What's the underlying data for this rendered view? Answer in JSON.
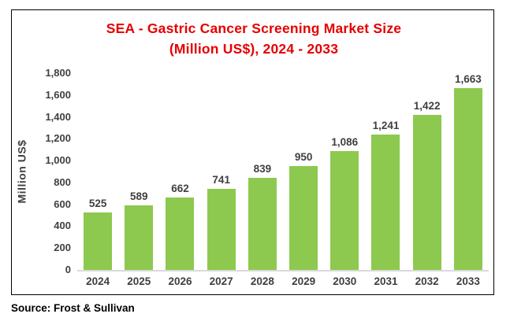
{
  "title_line1": "SEA - Gastric Cancer Screening Market Size",
  "title_line2": "(Million US$), 2024 - 2033",
  "source": "Source: Frost & Sullivan",
  "colors": {
    "title": "#e60000",
    "bar": "#8dc94e",
    "text": "#3f3f3f",
    "axis_line": "#d9d9d9",
    "frame_border": "#000000"
  },
  "chart_data": {
    "type": "bar",
    "title": "SEA - Gastric Cancer Screening Market Size (Million US$), 2024 - 2033",
    "categories": [
      "2024",
      "2025",
      "2026",
      "2027",
      "2028",
      "2029",
      "2030",
      "2031",
      "2032",
      "2033"
    ],
    "values": [
      525,
      589,
      662,
      741,
      839,
      950,
      1086,
      1241,
      1422,
      1663
    ],
    "value_labels": [
      "525",
      "589",
      "662",
      "741",
      "839",
      "950",
      "1,086",
      "1,241",
      "1,422",
      "1,663"
    ],
    "xlabel": "",
    "ylabel": "Million US$",
    "ylim": [
      0,
      1800
    ],
    "ytick_interval": 200,
    "ytick_labels": [
      "0",
      "200",
      "400",
      "600",
      "800",
      "1,000",
      "1,200",
      "1,400",
      "1,600",
      "1,800"
    ],
    "grid": false,
    "legend_position": "none",
    "bar_color": "#8dc94e"
  }
}
